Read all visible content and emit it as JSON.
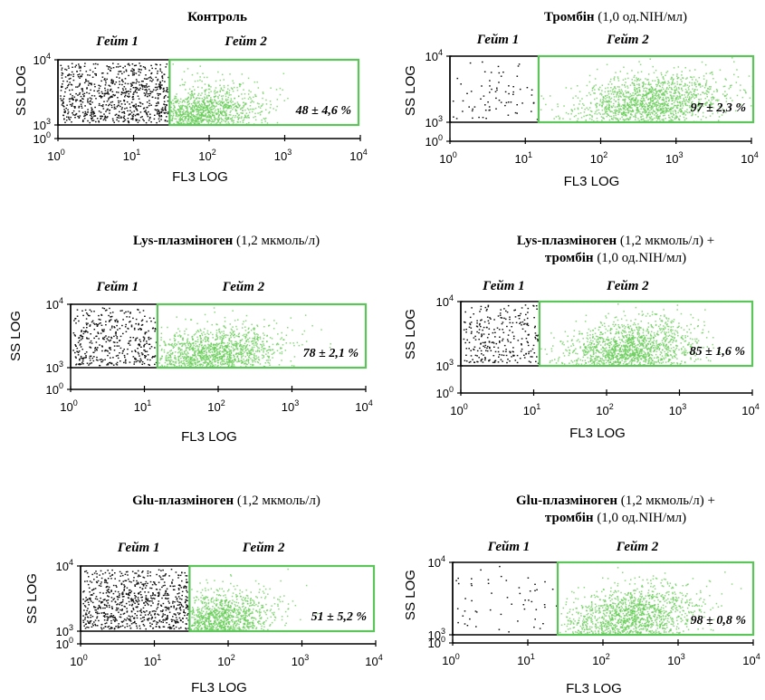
{
  "figure": {
    "x_axis_label": "FL3 LOG",
    "y_axis_label": "SS LOG",
    "gate1_label": "Гейт 1",
    "gate2_label": "Гейт 2",
    "colors": {
      "gate1_events": "#111111",
      "gate2_events": "#66cc55",
      "gate2_border": "#5cc45a",
      "axis": "#000000"
    }
  },
  "chart_data": [
    {
      "type": "scatter",
      "title_bold": "Контроль",
      "title_rest": "",
      "title_line2_bold": "",
      "title_line2_rest": "",
      "gate2_percent": "48 ± 4,6 %",
      "gate_boundary_fl3": 30,
      "x_scale": "log",
      "xlim": [
        1,
        10000
      ],
      "y_scale": "log",
      "ylim": [
        1,
        10000
      ],
      "x_ticks": [
        {
          "base": "10",
          "exp": "0",
          "value": 1
        },
        {
          "base": "10",
          "exp": "1",
          "value": 10
        },
        {
          "base": "10",
          "exp": "2",
          "value": 100
        },
        {
          "base": "10",
          "exp": "3",
          "value": 1000
        },
        {
          "base": "10",
          "exp": "4",
          "value": 10000
        }
      ],
      "y_ticks": [
        {
          "base": "10",
          "exp": "0",
          "value": 1
        },
        {
          "base": "10",
          "exp": "3",
          "value": 1000
        },
        {
          "base": "10",
          "exp": "4",
          "value": 10000
        }
      ],
      "gate1_density": 0.85,
      "gate2_center_fl3": 70,
      "gate2_spread": 0.4
    },
    {
      "type": "scatter",
      "title_bold": "Тромбін",
      "title_rest": " (1,0 од.NIH/мл)",
      "title_line2_bold": "",
      "title_line2_rest": "",
      "gate2_percent": "97 ± 2,3 %",
      "gate_boundary_fl3": 15,
      "x_scale": "log",
      "xlim": [
        1,
        10000
      ],
      "y_scale": "log",
      "ylim": [
        1,
        10000
      ],
      "x_ticks": [
        {
          "base": "10",
          "exp": "0",
          "value": 1
        },
        {
          "base": "10",
          "exp": "1",
          "value": 10
        },
        {
          "base": "10",
          "exp": "2",
          "value": 100
        },
        {
          "base": "10",
          "exp": "3",
          "value": 1000
        },
        {
          "base": "10",
          "exp": "4",
          "value": 10000
        }
      ],
      "y_ticks": [
        {
          "base": "10",
          "exp": "0",
          "value": 1
        },
        {
          "base": "10",
          "exp": "3",
          "value": 1000
        },
        {
          "base": "10",
          "exp": "4",
          "value": 10000
        }
      ],
      "gate1_density": 0.08,
      "gate2_center_fl3": 400,
      "gate2_spread": 0.5
    },
    {
      "type": "scatter",
      "title_bold": "Lys-плазміноген",
      "title_rest": " (1,2 мкмоль/л)",
      "title_line2_bold": "",
      "title_line2_rest": "",
      "gate2_percent": "78 ± 2,1 %",
      "gate_boundary_fl3": 15,
      "x_scale": "log",
      "xlim": [
        1,
        10000
      ],
      "y_scale": "log",
      "ylim": [
        1,
        10000
      ],
      "x_ticks": [
        {
          "base": "10",
          "exp": "0",
          "value": 1
        },
        {
          "base": "10",
          "exp": "1",
          "value": 10
        },
        {
          "base": "10",
          "exp": "2",
          "value": 100
        },
        {
          "base": "10",
          "exp": "3",
          "value": 1000
        },
        {
          "base": "10",
          "exp": "4",
          "value": 10000
        }
      ],
      "y_ticks": [
        {
          "base": "10",
          "exp": "0",
          "value": 1
        },
        {
          "base": "10",
          "exp": "3",
          "value": 1000
        },
        {
          "base": "10",
          "exp": "4",
          "value": 10000
        }
      ],
      "gate1_density": 0.45,
      "gate2_center_fl3": 80,
      "gate2_spread": 0.45
    },
    {
      "type": "scatter",
      "title_bold": "Lys-плазміноген",
      "title_rest": " (1,2 мкмоль/л) +",
      "title_line2_bold": "тромбін",
      "title_line2_rest": " (1,0 од.NIH/мл)",
      "gate2_percent": "85 ± 1,6 %",
      "gate_boundary_fl3": 12,
      "x_scale": "log",
      "xlim": [
        1,
        10000
      ],
      "y_scale": "log",
      "ylim": [
        1,
        10000
      ],
      "x_ticks": [
        {
          "base": "10",
          "exp": "0",
          "value": 1
        },
        {
          "base": "10",
          "exp": "1",
          "value": 10
        },
        {
          "base": "10",
          "exp": "2",
          "value": 100
        },
        {
          "base": "10",
          "exp": "3",
          "value": 1000
        },
        {
          "base": "10",
          "exp": "4",
          "value": 10000
        }
      ],
      "y_ticks": [
        {
          "base": "10",
          "exp": "0",
          "value": 1
        },
        {
          "base": "10",
          "exp": "3",
          "value": 1000
        },
        {
          "base": "10",
          "exp": "4",
          "value": 10000
        }
      ],
      "gate1_density": 0.3,
      "gate2_center_fl3": 200,
      "gate2_spread": 0.45
    },
    {
      "type": "scatter",
      "title_bold": "Glu-плазміноген",
      "title_rest": " (1,2 мкмоль/л)",
      "title_line2_bold": "",
      "title_line2_rest": "",
      "gate2_percent": "51 ± 5,2 %",
      "gate_boundary_fl3": 30,
      "x_scale": "log",
      "xlim": [
        1,
        10000
      ],
      "y_scale": "log",
      "ylim": [
        1,
        10000
      ],
      "x_ticks": [
        {
          "base": "10",
          "exp": "0",
          "value": 1
        },
        {
          "base": "10",
          "exp": "1",
          "value": 10
        },
        {
          "base": "10",
          "exp": "2",
          "value": 100
        },
        {
          "base": "10",
          "exp": "3",
          "value": 1000
        },
        {
          "base": "10",
          "exp": "4",
          "value": 10000
        }
      ],
      "y_ticks": [
        {
          "base": "10",
          "exp": "0",
          "value": 1
        },
        {
          "base": "10",
          "exp": "3",
          "value": 1000
        },
        {
          "base": "10",
          "exp": "4",
          "value": 10000
        }
      ],
      "gate1_density": 0.85,
      "gate2_center_fl3": 60,
      "gate2_spread": 0.4
    },
    {
      "type": "scatter",
      "title_bold": "Glu-плазміноген",
      "title_rest": " (1,2 мкмоль/л) +",
      "title_line2_bold": "тромбін",
      "title_line2_rest": " (1,0 од.NIH/мл)",
      "gate2_percent": "98 ± 0,8 %",
      "gate_boundary_fl3": 25,
      "x_scale": "log",
      "xlim": [
        1,
        10000
      ],
      "y_scale": "log",
      "ylim": [
        1,
        10000
      ],
      "x_ticks": [
        {
          "base": "10",
          "exp": "0",
          "value": 1
        },
        {
          "base": "10",
          "exp": "1",
          "value": 10
        },
        {
          "base": "10",
          "exp": "2",
          "value": 100
        },
        {
          "base": "10",
          "exp": "3",
          "value": 1000
        },
        {
          "base": "10",
          "exp": "4",
          "value": 10000
        }
      ],
      "y_ticks": [
        {
          "base": "10",
          "exp": "0",
          "value": 1
        },
        {
          "base": "10",
          "exp": "3",
          "value": 1000
        },
        {
          "base": "10",
          "exp": "4",
          "value": 10000
        }
      ],
      "gate1_density": 0.06,
      "gate2_center_fl3": 220,
      "gate2_spread": 0.45
    }
  ]
}
